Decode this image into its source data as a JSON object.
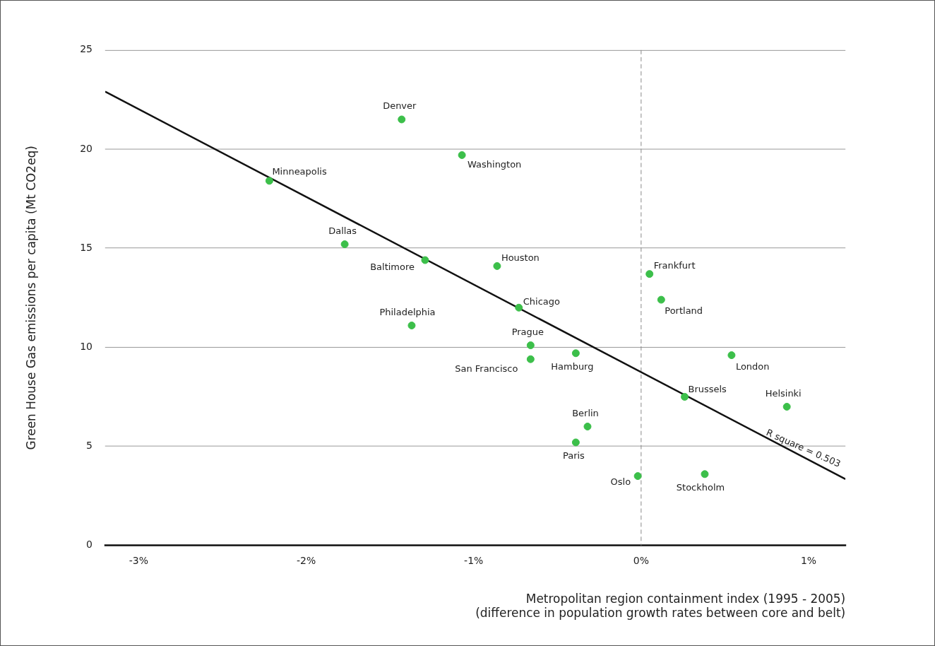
{
  "chart_data": {
    "type": "scatter",
    "xlabel": "Metropolitan region containment index (1995 - 2005)\n(difference in population growth rates between core and belt)",
    "ylabel": "Green House Gas emissions per capita (Mt CO2eq)",
    "xlim": [
      -3.2,
      1.22
    ],
    "ylim": [
      0,
      25
    ],
    "xticks": [
      {
        "value": -3,
        "label": "-3%"
      },
      {
        "value": -2,
        "label": "-2%"
      },
      {
        "value": -1,
        "label": "-1%"
      },
      {
        "value": 0,
        "label": "0%"
      },
      {
        "value": 1,
        "label": "1%"
      }
    ],
    "yticks": [
      0,
      5,
      10,
      15,
      20,
      25
    ],
    "grid": "y",
    "legend": false,
    "marker": "circle",
    "series": [
      {
        "type": "scatter",
        "color": "#3cbf4a",
        "x": [
          -1.43,
          -1.07,
          -2.22,
          -1.77,
          -1.29,
          -0.86,
          -0.73,
          -1.37,
          -0.66,
          -0.66,
          -0.39,
          -0.32,
          -0.39,
          -0.02,
          0.05,
          0.12,
          0.54,
          0.26,
          0.87,
          0.38
        ],
        "values": [
          21.5,
          19.7,
          18.4,
          15.2,
          14.4,
          14.1,
          12.0,
          11.1,
          10.1,
          9.4,
          9.7,
          6.0,
          5.2,
          3.5,
          13.7,
          12.4,
          9.6,
          7.5,
          7.0,
          3.6
        ]
      },
      {
        "type": "line",
        "color": "#111111",
        "marker": "none",
        "line_style": "solid",
        "x": [
          -3.2,
          1.22
        ],
        "values": [
          22.9,
          3.35
        ]
      }
    ],
    "ref_lines": [
      {
        "axis": "x",
        "value": 0,
        "color": "#888888",
        "line_style": "dashed"
      }
    ],
    "annotations": [
      {
        "text": "Denver",
        "x": -1.43,
        "y": 21.5
      },
      {
        "text": "Washington",
        "x": -1.07,
        "y": 19.7
      },
      {
        "text": "Minneapolis",
        "x": -2.22,
        "y": 18.4
      },
      {
        "text": "Dallas",
        "x": -1.77,
        "y": 15.2
      },
      {
        "text": "Baltimore",
        "x": -1.29,
        "y": 14.4
      },
      {
        "text": "Houston",
        "x": -0.86,
        "y": 14.1
      },
      {
        "text": "Chicago",
        "x": -0.73,
        "y": 12.0
      },
      {
        "text": "Philadelphia",
        "x": -1.37,
        "y": 11.1
      },
      {
        "text": "Prague",
        "x": -0.66,
        "y": 10.1
      },
      {
        "text": "San Francisco",
        "x": -0.66,
        "y": 9.4
      },
      {
        "text": "Hamburg",
        "x": -0.39,
        "y": 9.7
      },
      {
        "text": "Berlin",
        "x": -0.32,
        "y": 6.0
      },
      {
        "text": "Paris",
        "x": -0.39,
        "y": 5.2
      },
      {
        "text": "Oslo",
        "x": -0.02,
        "y": 3.5
      },
      {
        "text": "Frankfurt",
        "x": 0.05,
        "y": 13.7
      },
      {
        "text": "Portland",
        "x": 0.12,
        "y": 12.4
      },
      {
        "text": "London",
        "x": 0.54,
        "y": 9.6
      },
      {
        "text": "Brussels",
        "x": 0.26,
        "y": 7.5
      },
      {
        "text": "Helsinki",
        "x": 0.87,
        "y": 7.0
      },
      {
        "text": "Stockholm",
        "x": 0.38,
        "y": 3.6
      },
      {
        "text": "R square = 0.503",
        "x": 0.95,
        "y": 4.55
      }
    ]
  }
}
